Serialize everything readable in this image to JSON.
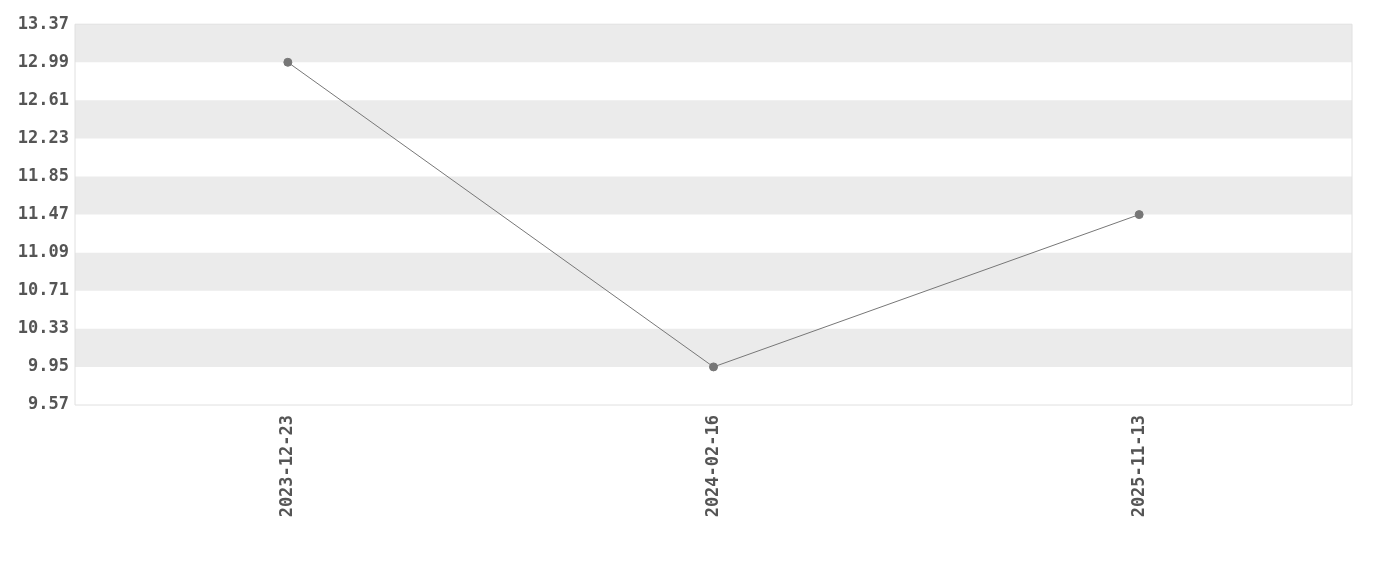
{
  "chart_data": {
    "type": "line",
    "categories": [
      "2023-12-23",
      "2024-02-16",
      "2025-11-13"
    ],
    "series": [
      {
        "color": "#777777",
        "values": [
          12.99,
          9.95,
          11.47
        ]
      }
    ],
    "ylim": [
      9.57,
      13.37
    ],
    "yticks": [
      9.57,
      9.95,
      10.33,
      10.71,
      11.09,
      11.47,
      11.85,
      12.23,
      12.61,
      12.99,
      13.37
    ],
    "bands": [
      {
        "axis": "y",
        "from": 12.99,
        "to": 13.37,
        "color": "#ebebeb"
      },
      {
        "axis": "y",
        "from": 12.23,
        "to": 12.61,
        "color": "#ebebeb"
      },
      {
        "axis": "y",
        "from": 11.47,
        "to": 11.85,
        "color": "#ebebeb"
      },
      {
        "axis": "y",
        "from": 10.71,
        "to": 11.09,
        "color": "#ebebeb"
      },
      {
        "axis": "y",
        "from": 9.95,
        "to": 10.33,
        "color": "#ebebeb"
      }
    ],
    "marker": "circle",
    "legend": false
  }
}
